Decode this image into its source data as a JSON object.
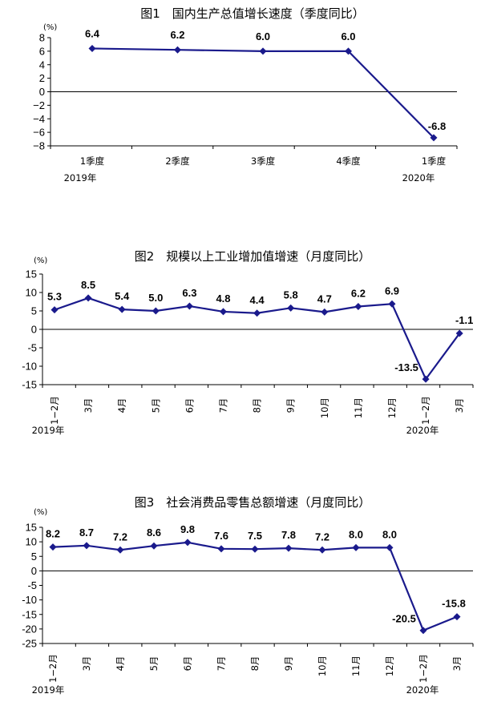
{
  "chart_data": [
    {
      "type": "line",
      "title": "图1　国内生产总值增长速度（季度同比）",
      "unit": "(%)",
      "categories": [
        "1季度",
        "2季度",
        "3季度",
        "4季度",
        "1季度"
      ],
      "year_labels": [
        "2019年",
        "2020年"
      ],
      "values": [
        6.4,
        6.2,
        6.0,
        6.0,
        -6.8
      ],
      "value_labels": [
        "6.4",
        "6.2",
        "6.0",
        "6.0",
        "-6.8"
      ],
      "yticks": [
        "8",
        "6",
        "4",
        "2",
        "0",
        "−2",
        "−4",
        "−6",
        "−8"
      ],
      "ylim": [
        -8,
        8
      ],
      "color": "#1a1a8c",
      "legend": "none",
      "grid": false
    },
    {
      "type": "line",
      "title": "图2　规模以上工业增加值增速（月度同比）",
      "unit": "(%)",
      "categories": [
        "1−2月",
        "3月",
        "4月",
        "5月",
        "6月",
        "7月",
        "8月",
        "9月",
        "10月",
        "11月",
        "12月",
        "1−2月",
        "3月"
      ],
      "year_labels": [
        "2019年",
        "2020年"
      ],
      "values": [
        5.3,
        8.5,
        5.4,
        5.0,
        6.3,
        4.8,
        4.4,
        5.8,
        4.7,
        6.2,
        6.9,
        -13.5,
        -1.1
      ],
      "value_labels": [
        "5.3",
        "8.5",
        "5.4",
        "5.0",
        "6.3",
        "4.8",
        "4.4",
        "5.8",
        "4.7",
        "6.2",
        "6.9",
        "-13.5",
        "-1.1"
      ],
      "yticks": [
        "15",
        "10",
        "5",
        "0",
        "-5",
        "-10",
        "-15"
      ],
      "ylim": [
        -15,
        15
      ],
      "color": "#1a1a8c",
      "legend": "none",
      "grid": false
    },
    {
      "type": "line",
      "title": "图3　社会消费品零售总额增速（月度同比）",
      "unit": "(%)",
      "categories": [
        "1−2月",
        "3月",
        "4月",
        "5月",
        "6月",
        "7月",
        "8月",
        "9月",
        "10月",
        "11月",
        "12月",
        "1−2月",
        "3月"
      ],
      "year_labels": [
        "2019年",
        "2020年"
      ],
      "values": [
        8.2,
        8.7,
        7.2,
        8.6,
        9.8,
        7.6,
        7.5,
        7.8,
        7.2,
        8.0,
        8.0,
        -20.5,
        -15.8
      ],
      "value_labels": [
        "8.2",
        "8.7",
        "7.2",
        "8.6",
        "9.8",
        "7.6",
        "7.5",
        "7.8",
        "7.2",
        "8.0",
        "8.0",
        "-20.5",
        "-15.8"
      ],
      "yticks": [
        "15",
        "10",
        "5",
        "0",
        "-5",
        "-10",
        "-15",
        "-20",
        "-25"
      ],
      "ylim": [
        -25,
        15
      ],
      "color": "#1a1a8c",
      "legend": "none",
      "grid": false
    }
  ]
}
